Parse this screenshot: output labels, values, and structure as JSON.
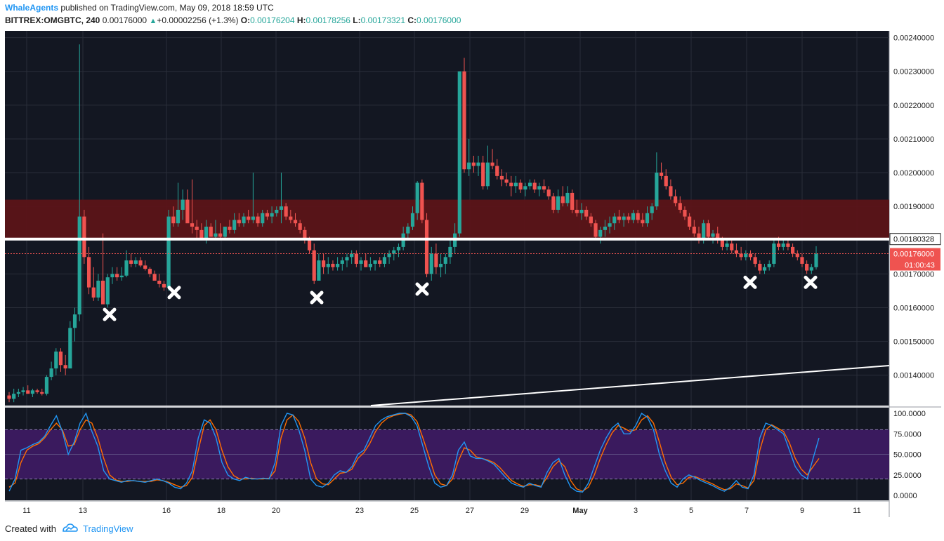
{
  "header": {
    "author": "WhaleAgents",
    "published_text": "published on TradingView.com, May 09, 2018 18:59 UTC",
    "symbol": "BITTREX:OMGBTC, 240",
    "last": "0.00176000",
    "change": "+0.00002256 (+1.3%)",
    "open_label": "O:",
    "open": "0.00176204",
    "high_label": "H:",
    "high": "0.00178256",
    "low_label": "L:",
    "low": "0.00173321",
    "close_label": "C:",
    "close": "0.00176000"
  },
  "footer": {
    "created_with": "Created with",
    "brand": "TradingView"
  },
  "colors": {
    "background": "#131722",
    "bull": "#26a69a",
    "bear": "#ef5350",
    "resistance_zone": "#5b1418",
    "stoch_band": "#3a1a5e",
    "stoch_k": "#2196f3",
    "stoch_d": "#ff6d00",
    "price_tag": "#ef5350"
  },
  "chart_data": {
    "type": "candlestick",
    "price_axis_ticks": [
      "0.00240000",
      "0.00230000",
      "0.00220000",
      "0.00210000",
      "0.00200000",
      "0.00190000",
      "0.00180000",
      "0.00170000",
      "0.00160000",
      "0.00150000",
      "0.00140000"
    ],
    "stoch_axis_ticks": [
      "100.0000",
      "75.0000",
      "50.0000",
      "25.0000",
      "0.0000"
    ],
    "x_ticks": [
      "11",
      "13",
      "16",
      "18",
      "20",
      "23",
      "25",
      "27",
      "29",
      "May",
      "3",
      "5",
      "7",
      "9",
      "11"
    ],
    "ylim": [
      0.00131,
      0.00242
    ],
    "horizontal_line": {
      "value": 0.00180328,
      "label": "0.00180328"
    },
    "last_price": {
      "value": 0.00176,
      "label": "0.00176000",
      "countdown": "01:00:43"
    },
    "resistance_zone": [
      0.0018,
      0.00192
    ],
    "trendline": {
      "from": [
        23.2,
        0.00122
      ],
      "to": [
        1346,
        0.001425
      ]
    },
    "markers": [
      {
        "x": 156,
        "price": 0.00158
      },
      {
        "x": 248,
        "price": 0.001645
      },
      {
        "x": 451,
        "price": 0.00163
      },
      {
        "x": 601,
        "price": 0.001655
      },
      {
        "x": 1068,
        "price": 0.001675
      },
      {
        "x": 1154,
        "price": 0.001675
      }
    ],
    "candles": [
      [
        0.00134,
        0.00135,
        0.00132,
        0.00133
      ],
      [
        0.00133,
        0.00136,
        0.00132,
        0.001345
      ],
      [
        0.001345,
        0.00136,
        0.001335,
        0.00135
      ],
      [
        0.00135,
        0.001365,
        0.00134,
        0.001355
      ],
      [
        0.001355,
        0.00137,
        0.001345,
        0.001345
      ],
      [
        0.001345,
        0.00136,
        0.001335,
        0.001355
      ],
      [
        0.001355,
        0.00136,
        0.001345,
        0.00135
      ],
      [
        0.00135,
        0.00136,
        0.00134,
        0.001345
      ],
      [
        0.001345,
        0.0014,
        0.00134,
        0.001395
      ],
      [
        0.001395,
        0.00144,
        0.001385,
        0.00142
      ],
      [
        0.00142,
        0.00148,
        0.0014,
        0.00147
      ],
      [
        0.00147,
        0.00148,
        0.00141,
        0.00143
      ],
      [
        0.00143,
        0.00146,
        0.0014,
        0.00142
      ],
      [
        0.00142,
        0.00156,
        0.00142,
        0.00154
      ],
      [
        0.00154,
        0.0016,
        0.0015,
        0.00158
      ],
      [
        0.00158,
        0.00238,
        0.00156,
        0.00187
      ],
      [
        0.00187,
        0.00189,
        0.00173,
        0.00175
      ],
      [
        0.00175,
        0.00178,
        0.00164,
        0.00166
      ],
      [
        0.00166,
        0.00172,
        0.00162,
        0.00163
      ],
      [
        0.00163,
        0.0017,
        0.00162,
        0.00168
      ],
      [
        0.00168,
        0.00182,
        0.00162,
        0.00161
      ],
      [
        0.00161,
        0.0017,
        0.0016,
        0.00169
      ],
      [
        0.00169,
        0.00172,
        0.00167,
        0.0017
      ],
      [
        0.0017,
        0.00172,
        0.00168,
        0.00169
      ],
      [
        0.00169,
        0.00172,
        0.00168,
        0.001695
      ],
      [
        0.001695,
        0.00177,
        0.00169,
        0.00174
      ],
      [
        0.00174,
        0.00176,
        0.00172,
        0.00173
      ],
      [
        0.00173,
        0.00175,
        0.00172,
        0.00174
      ],
      [
        0.00174,
        0.00175,
        0.00172,
        0.001725
      ],
      [
        0.001725,
        0.00174,
        0.00171,
        0.001715
      ],
      [
        0.001715,
        0.00172,
        0.00169,
        0.0017
      ],
      [
        0.0017,
        0.00171,
        0.00168,
        0.00168
      ],
      [
        0.00168,
        0.0017,
        0.00166,
        0.00167
      ],
      [
        0.00167,
        0.00168,
        0.00165,
        0.00166
      ],
      [
        0.00166,
        0.00189,
        0.00165,
        0.00187
      ],
      [
        0.00187,
        0.0019,
        0.00184,
        0.00185
      ],
      [
        0.00185,
        0.00197,
        0.00184,
        0.00189
      ],
      [
        0.00189,
        0.00195,
        0.00186,
        0.00192
      ],
      [
        0.00192,
        0.00195,
        0.00186,
        0.00185
      ],
      [
        0.00185,
        0.00198,
        0.00182,
        0.00184
      ],
      [
        0.00184,
        0.00186,
        0.0018,
        0.00183
      ],
      [
        0.00183,
        0.00185,
        0.00181,
        0.0018
      ],
      [
        0.0018,
        0.00186,
        0.00179,
        0.00184
      ],
      [
        0.00184,
        0.00185,
        0.00181,
        0.00181
      ],
      [
        0.00181,
        0.00186,
        0.0018,
        0.00182
      ],
      [
        0.00182,
        0.00185,
        0.0018,
        0.00181
      ],
      [
        0.00181,
        0.00184,
        0.0018,
        0.00184
      ],
      [
        0.00184,
        0.00186,
        0.00182,
        0.00183
      ],
      [
        0.00183,
        0.00188,
        0.00182,
        0.00186
      ],
      [
        0.00186,
        0.00188,
        0.00184,
        0.00185
      ],
      [
        0.00185,
        0.00188,
        0.00184,
        0.00187
      ],
      [
        0.00187,
        0.00189,
        0.00185,
        0.00186
      ],
      [
        0.00186,
        0.002,
        0.00185,
        0.00187
      ],
      [
        0.00187,
        0.00188,
        0.00184,
        0.00185
      ],
      [
        0.00185,
        0.00189,
        0.00184,
        0.00188
      ],
      [
        0.00188,
        0.00189,
        0.00186,
        0.00187
      ],
      [
        0.00187,
        0.0019,
        0.00185,
        0.00188
      ],
      [
        0.00188,
        0.0019,
        0.00187,
        0.00189
      ],
      [
        0.00189,
        0.002,
        0.00185,
        0.0019
      ],
      [
        0.0019,
        0.00191,
        0.00186,
        0.00187
      ],
      [
        0.00187,
        0.00189,
        0.00185,
        0.00186
      ],
      [
        0.00186,
        0.00188,
        0.00184,
        0.00185
      ],
      [
        0.00185,
        0.00186,
        0.00182,
        0.00183
      ],
      [
        0.00183,
        0.00184,
        0.00179,
        0.0018
      ],
      [
        0.0018,
        0.00181,
        0.00176,
        0.00177
      ],
      [
        0.00177,
        0.00179,
        0.00167,
        0.00168
      ],
      [
        0.00168,
        0.00176,
        0.00168,
        0.00174
      ],
      [
        0.00174,
        0.00176,
        0.0017,
        0.00172
      ],
      [
        0.00172,
        0.00175,
        0.0017,
        0.00173
      ],
      [
        0.00173,
        0.00174,
        0.00171,
        0.00172
      ],
      [
        0.00172,
        0.00175,
        0.00171,
        0.00173
      ],
      [
        0.00173,
        0.00175,
        0.00171,
        0.00174
      ],
      [
        0.00174,
        0.00176,
        0.00172,
        0.00175
      ],
      [
        0.00175,
        0.00177,
        0.00173,
        0.00176
      ],
      [
        0.00176,
        0.00177,
        0.00172,
        0.00173
      ],
      [
        0.00173,
        0.00175,
        0.00171,
        0.00174
      ],
      [
        0.00174,
        0.00176,
        0.00172,
        0.00172
      ],
      [
        0.00172,
        0.00175,
        0.00171,
        0.00173
      ],
      [
        0.00173,
        0.00174,
        0.00171,
        0.00174
      ],
      [
        0.00174,
        0.00175,
        0.00172,
        0.00173
      ],
      [
        0.00173,
        0.00176,
        0.00172,
        0.00175
      ],
      [
        0.00175,
        0.00177,
        0.00173,
        0.00176
      ],
      [
        0.00176,
        0.00178,
        0.00174,
        0.00177
      ],
      [
        0.00177,
        0.00179,
        0.00175,
        0.00178
      ],
      [
        0.00178,
        0.00184,
        0.00177,
        0.00182
      ],
      [
        0.00182,
        0.00185,
        0.0018,
        0.00184
      ],
      [
        0.00184,
        0.0019,
        0.00183,
        0.00188
      ],
      [
        0.00188,
        0.001975,
        0.00186,
        0.00197
      ],
      [
        0.00197,
        0.00198,
        0.00185,
        0.00186
      ],
      [
        0.00186,
        0.00188,
        0.00169,
        0.0017
      ],
      [
        0.0017,
        0.00178,
        0.00168,
        0.00176
      ],
      [
        0.00176,
        0.00179,
        0.0017,
        0.00172
      ],
      [
        0.00172,
        0.00176,
        0.00169,
        0.00173
      ],
      [
        0.00173,
        0.00176,
        0.0017,
        0.00175
      ],
      [
        0.00175,
        0.0018,
        0.00173,
        0.00178
      ],
      [
        0.00178,
        0.00185,
        0.00176,
        0.00182
      ],
      [
        0.00182,
        0.0023,
        0.00181,
        0.0023
      ],
      [
        0.0023,
        0.00234,
        0.002,
        0.00201
      ],
      [
        0.00201,
        0.0021,
        0.00199,
        0.00203
      ],
      [
        0.00203,
        0.00205,
        0.002,
        0.00202
      ],
      [
        0.00202,
        0.00205,
        0.00199,
        0.00203
      ],
      [
        0.00203,
        0.00205,
        0.00195,
        0.00196
      ],
      [
        0.00196,
        0.00208,
        0.00195,
        0.00203
      ],
      [
        0.00203,
        0.00207,
        0.00201,
        0.00202
      ],
      [
        0.00202,
        0.00204,
        0.00198,
        0.00199
      ],
      [
        0.00199,
        0.00201,
        0.00196,
        0.00198
      ],
      [
        0.00198,
        0.002,
        0.00196,
        0.00197
      ],
      [
        0.00197,
        0.00199,
        0.00193,
        0.00196
      ],
      [
        0.00196,
        0.00199,
        0.00194,
        0.00197
      ],
      [
        0.00197,
        0.00198,
        0.00194,
        0.00195
      ],
      [
        0.00195,
        0.00197,
        0.00193,
        0.00196
      ],
      [
        0.00196,
        0.00198,
        0.00195,
        0.00197
      ],
      [
        0.00197,
        0.00198,
        0.00194,
        0.00195
      ],
      [
        0.00195,
        0.00197,
        0.00193,
        0.00196
      ],
      [
        0.00196,
        0.00198,
        0.00194,
        0.00195
      ],
      [
        0.00195,
        0.00196,
        0.00192,
        0.00193
      ],
      [
        0.00193,
        0.00194,
        0.00188,
        0.00189
      ],
      [
        0.00189,
        0.00195,
        0.00188,
        0.00193
      ],
      [
        0.00193,
        0.00196,
        0.0019,
        0.00191
      ],
      [
        0.00191,
        0.00196,
        0.0019,
        0.00194
      ],
      [
        0.00194,
        0.00195,
        0.00188,
        0.00189
      ],
      [
        0.00189,
        0.00192,
        0.00187,
        0.00188
      ],
      [
        0.00188,
        0.00191,
        0.00186,
        0.00189
      ],
      [
        0.00189,
        0.0019,
        0.00186,
        0.00187
      ],
      [
        0.00187,
        0.00188,
        0.00184,
        0.00185
      ],
      [
        0.00185,
        0.00186,
        0.0018,
        0.00181
      ],
      [
        0.00181,
        0.00184,
        0.00179,
        0.00183
      ],
      [
        0.00183,
        0.00186,
        0.00181,
        0.00184
      ],
      [
        0.00184,
        0.00187,
        0.00182,
        0.00185
      ],
      [
        0.00185,
        0.00188,
        0.00183,
        0.00187
      ],
      [
        0.00187,
        0.00189,
        0.00185,
        0.00186
      ],
      [
        0.00186,
        0.00188,
        0.00184,
        0.00187
      ],
      [
        0.00187,
        0.00188,
        0.00185,
        0.00186
      ],
      [
        0.00186,
        0.00189,
        0.00185,
        0.00188
      ],
      [
        0.00188,
        0.00189,
        0.00185,
        0.00186
      ],
      [
        0.00186,
        0.00188,
        0.00184,
        0.00185
      ],
      [
        0.00185,
        0.0019,
        0.00184,
        0.00188
      ],
      [
        0.00188,
        0.00191,
        0.00186,
        0.0019
      ],
      [
        0.0019,
        0.00206,
        0.00189,
        0.002
      ],
      [
        0.002,
        0.00203,
        0.00198,
        0.00199
      ],
      [
        0.00199,
        0.00201,
        0.00195,
        0.00196
      ],
      [
        0.00196,
        0.00198,
        0.00192,
        0.00193
      ],
      [
        0.00193,
        0.00195,
        0.0019,
        0.00191
      ],
      [
        0.00191,
        0.00193,
        0.00188,
        0.00189
      ],
      [
        0.00189,
        0.0019,
        0.00186,
        0.00187
      ],
      [
        0.00187,
        0.00188,
        0.00183,
        0.00184
      ],
      [
        0.00184,
        0.00186,
        0.00181,
        0.00182
      ],
      [
        0.00182,
        0.00184,
        0.00179,
        0.0018
      ],
      [
        0.0018,
        0.00186,
        0.00179,
        0.00185
      ],
      [
        0.00185,
        0.00186,
        0.0018,
        0.00181
      ],
      [
        0.00181,
        0.00183,
        0.00179,
        0.00182
      ],
      [
        0.00182,
        0.00184,
        0.00179,
        0.0018
      ],
      [
        0.0018,
        0.00181,
        0.00177,
        0.00178
      ],
      [
        0.00178,
        0.0018,
        0.00177,
        0.00179
      ],
      [
        0.00179,
        0.0018,
        0.00176,
        0.00177
      ],
      [
        0.00177,
        0.00179,
        0.00175,
        0.00176
      ],
      [
        0.00176,
        0.00178,
        0.00174,
        0.00175
      ],
      [
        0.00175,
        0.00177,
        0.00174,
        0.00176
      ],
      [
        0.00176,
        0.00177,
        0.00174,
        0.00175
      ],
      [
        0.00175,
        0.00176,
        0.00172,
        0.00173
      ],
      [
        0.00173,
        0.00174,
        0.0017,
        0.00171
      ],
      [
        0.00171,
        0.00173,
        0.0017,
        0.00172
      ],
      [
        0.00172,
        0.00174,
        0.00171,
        0.00173
      ],
      [
        0.00173,
        0.0018,
        0.00172,
        0.00179
      ],
      [
        0.00179,
        0.00181,
        0.00177,
        0.00178
      ],
      [
        0.00178,
        0.0018,
        0.00177,
        0.00179
      ],
      [
        0.00179,
        0.0018,
        0.00177,
        0.00178
      ],
      [
        0.00178,
        0.00179,
        0.00175,
        0.00176
      ],
      [
        0.00176,
        0.00177,
        0.00174,
        0.00175
      ],
      [
        0.00175,
        0.00176,
        0.00172,
        0.00173
      ],
      [
        0.00173,
        0.00174,
        0.0017,
        0.00171
      ],
      [
        0.00171,
        0.00173,
        0.0017,
        0.00172
      ],
      [
        0.00172,
        0.001782,
        0.001713,
        0.00176
      ]
    ],
    "stoch_k": [
      5,
      20,
      55,
      58,
      62,
      65,
      72,
      85,
      97,
      78,
      50,
      65,
      88,
      100,
      78,
      60,
      30,
      20,
      18,
      16,
      18,
      18,
      17,
      16,
      18,
      20,
      18,
      15,
      10,
      8,
      15,
      30,
      70,
      92,
      88,
      70,
      40,
      25,
      20,
      18,
      22,
      20,
      20,
      21,
      20,
      40,
      85,
      100,
      98,
      80,
      55,
      20,
      12,
      10,
      15,
      25,
      30,
      28,
      35,
      50,
      55,
      70,
      85,
      92,
      96,
      98,
      100,
      100,
      96,
      85,
      60,
      35,
      15,
      10,
      12,
      25,
      55,
      65,
      48,
      45,
      45,
      42,
      38,
      30,
      22,
      15,
      12,
      10,
      15,
      12,
      10,
      28,
      40,
      45,
      25,
      10,
      5,
      4,
      15,
      35,
      55,
      70,
      82,
      88,
      75,
      75,
      85,
      100,
      95,
      80,
      50,
      30,
      15,
      10,
      20,
      25,
      22,
      18,
      15,
      12,
      8,
      5,
      10,
      18,
      10,
      8,
      25,
      70,
      88,
      85,
      80,
      75,
      55,
      35,
      25,
      20,
      45,
      70
    ],
    "stoch_d": [
      10,
      15,
      40,
      55,
      60,
      63,
      70,
      80,
      88,
      80,
      60,
      62,
      80,
      92,
      88,
      70,
      45,
      25,
      19,
      17,
      17,
      18,
      17,
      17,
      17,
      19,
      18,
      16,
      13,
      10,
      12,
      22,
      55,
      85,
      92,
      80,
      55,
      35,
      24,
      20,
      20,
      21,
      20,
      20,
      21,
      30,
      70,
      92,
      98,
      90,
      70,
      40,
      20,
      14,
      13,
      20,
      27,
      28,
      32,
      45,
      52,
      63,
      78,
      88,
      94,
      97,
      99,
      100,
      98,
      90,
      70,
      48,
      25,
      14,
      12,
      20,
      42,
      58,
      55,
      47,
      45,
      43,
      40,
      34,
      26,
      18,
      14,
      11,
      13,
      13,
      11,
      22,
      35,
      42,
      35,
      18,
      8,
      5,
      10,
      25,
      45,
      62,
      76,
      85,
      82,
      78,
      80,
      92,
      97,
      88,
      65,
      40,
      22,
      13,
      15,
      22,
      23,
      20,
      17,
      14,
      10,
      7,
      8,
      14,
      12,
      9,
      18,
      55,
      80,
      86,
      82,
      78,
      64,
      45,
      32,
      25,
      35,
      45
    ]
  }
}
